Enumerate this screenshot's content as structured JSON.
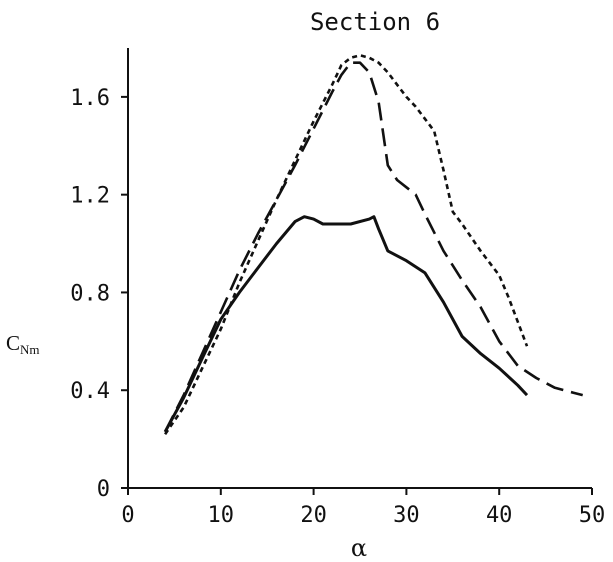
{
  "chart_data": {
    "type": "line",
    "title": "Section 6",
    "xlabel": "α",
    "ylabel": "C",
    "ylabel_sub": "Nm",
    "xlim": [
      0,
      50
    ],
    "ylim": [
      0,
      1.8
    ],
    "xticks": [
      0,
      10,
      20,
      30,
      40,
      50
    ],
    "xtick_labels": [
      "0",
      "10",
      "20",
      "30",
      "40",
      "50"
    ],
    "yticks": [
      0,
      0.4,
      0.8,
      1.2,
      1.6
    ],
    "ytick_labels": [
      "0",
      "0.4",
      "0.8",
      "1.2",
      "1.6"
    ],
    "grid": false,
    "legend": "none",
    "series": [
      {
        "style": "solid",
        "x": [
          4,
          6,
          8,
          10,
          12,
          14,
          16,
          18,
          19,
          20,
          21,
          22,
          24,
          26,
          26.5,
          27,
          28,
          29,
          30,
          32,
          34,
          36,
          38,
          40,
          42,
          43
        ],
        "y": [
          0.23,
          0.37,
          0.53,
          0.69,
          0.8,
          0.9,
          1.0,
          1.09,
          1.11,
          1.1,
          1.08,
          1.08,
          1.08,
          1.1,
          1.11,
          1.06,
          0.97,
          0.95,
          0.93,
          0.88,
          0.76,
          0.62,
          0.55,
          0.49,
          0.42,
          0.38
        ]
      },
      {
        "style": "long-dash",
        "x": [
          4,
          6,
          8,
          10,
          12,
          14,
          16,
          18,
          20,
          22,
          23,
          24,
          25,
          26,
          27,
          28,
          29,
          30,
          31,
          32,
          34,
          36,
          38,
          40,
          42,
          44,
          46,
          48,
          49
        ],
        "y": [
          0.23,
          0.38,
          0.55,
          0.72,
          0.89,
          1.04,
          1.18,
          1.32,
          1.47,
          1.62,
          1.69,
          1.74,
          1.74,
          1.7,
          1.58,
          1.32,
          1.26,
          1.23,
          1.2,
          1.12,
          0.97,
          0.85,
          0.74,
          0.6,
          0.5,
          0.45,
          0.41,
          0.39,
          0.38
        ]
      },
      {
        "style": "short-dash",
        "x": [
          4,
          6,
          8,
          10,
          12,
          14,
          16,
          18,
          20,
          22,
          23,
          24,
          25,
          26,
          27,
          28,
          29,
          30,
          31,
          32,
          33,
          34,
          35,
          36,
          38,
          40,
          41,
          42,
          43
        ],
        "y": [
          0.22,
          0.33,
          0.49,
          0.65,
          0.84,
          1.01,
          1.18,
          1.34,
          1.5,
          1.65,
          1.73,
          1.76,
          1.77,
          1.76,
          1.74,
          1.7,
          1.65,
          1.6,
          1.56,
          1.51,
          1.46,
          1.3,
          1.13,
          1.08,
          0.97,
          0.87,
          0.78,
          0.68,
          0.58
        ]
      }
    ]
  },
  "colors": {
    "line": "#111111",
    "axis": "#111111",
    "background": "#ffffff"
  }
}
